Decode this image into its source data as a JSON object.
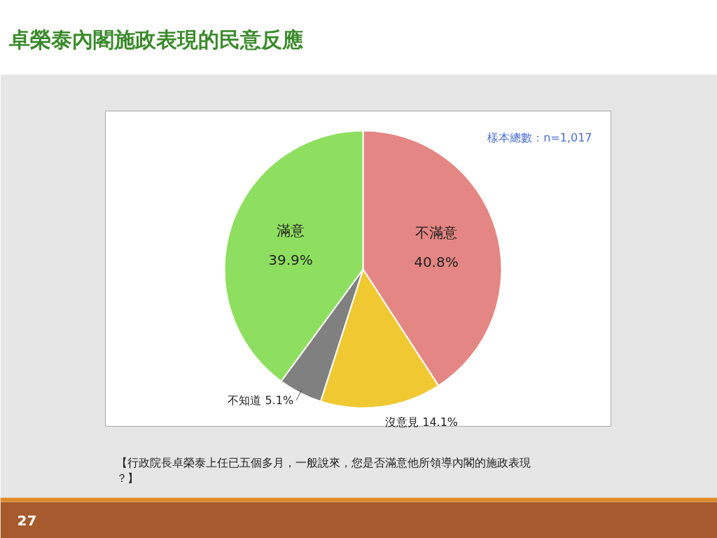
{
  "chart_data": {
    "type": "pie",
    "title": "卓榮泰內閣施政表現的民意反應",
    "categories": [
      "不滿意",
      "沒意見",
      "不知道",
      "滿意"
    ],
    "values": [
      40.8,
      14.1,
      5.1,
      39.9
    ],
    "colors": [
      "#e48683",
      "#f0c832",
      "#808080",
      "#8edf5f"
    ],
    "value_labels": [
      "40.8%",
      "14.1%",
      "5.1%",
      "39.9%"
    ],
    "annotations": [
      "樣本總數：n=1,017",
      "【行政院長卓榮泰上任已五個多月，一般說來，您是否滿意他所領導內閣的施政表現？】",
      "27"
    ]
  }
}
